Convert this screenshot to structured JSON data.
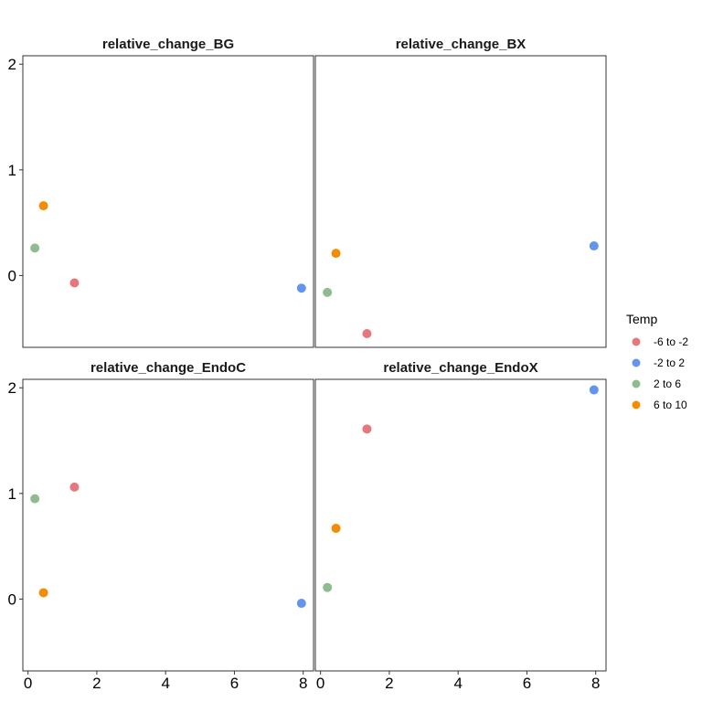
{
  "chart_data": {
    "type": "scatter",
    "facet_layout": "2x2",
    "shared_axes": true,
    "xlim": [
      -0.15,
      8.3
    ],
    "ylim": [
      -0.68,
      2.08
    ],
    "x_ticks": [
      0,
      2,
      4,
      6,
      8
    ],
    "y_ticks": [
      0,
      1,
      2
    ],
    "grid": false,
    "legend": {
      "title": "Temp",
      "placement": "right",
      "entries": [
        {
          "label": "-6 to -2",
          "color": "#E7777E"
        },
        {
          "label": "-2 to 2",
          "color": "#6495ED"
        },
        {
          "label": "2 to 6",
          "color": "#8FBC8F"
        },
        {
          "label": "6 to 10",
          "color": "#F28C00"
        }
      ]
    },
    "panels": [
      {
        "title": "relative_change_BG",
        "points": [
          {
            "x": 1.35,
            "y": -0.07,
            "group": "-6 to -2"
          },
          {
            "x": 7.95,
            "y": -0.12,
            "group": "-2 to 2"
          },
          {
            "x": 0.2,
            "y": 0.26,
            "group": "2 to 6"
          },
          {
            "x": 0.45,
            "y": 0.66,
            "group": "6 to 10"
          }
        ]
      },
      {
        "title": "relative_change_BX",
        "points": [
          {
            "x": 1.35,
            "y": -0.55,
            "group": "-6 to -2"
          },
          {
            "x": 7.95,
            "y": 0.28,
            "group": "-2 to 2"
          },
          {
            "x": 0.2,
            "y": -0.16,
            "group": "2 to 6"
          },
          {
            "x": 0.45,
            "y": 0.21,
            "group": "6 to 10"
          }
        ]
      },
      {
        "title": "relative_change_EndoC",
        "points": [
          {
            "x": 1.35,
            "y": 1.06,
            "group": "-6 to -2"
          },
          {
            "x": 7.95,
            "y": -0.04,
            "group": "-2 to 2"
          },
          {
            "x": 0.2,
            "y": 0.95,
            "group": "2 to 6"
          },
          {
            "x": 0.45,
            "y": 0.06,
            "group": "6 to 10"
          }
        ]
      },
      {
        "title": "relative_change_EndoX",
        "points": [
          {
            "x": 1.35,
            "y": 1.61,
            "group": "-6 to -2"
          },
          {
            "x": 7.95,
            "y": 1.98,
            "group": "-2 to 2"
          },
          {
            "x": 0.2,
            "y": 0.11,
            "group": "2 to 6"
          },
          {
            "x": 0.45,
            "y": 0.67,
            "group": "6 to 10"
          }
        ]
      }
    ]
  }
}
